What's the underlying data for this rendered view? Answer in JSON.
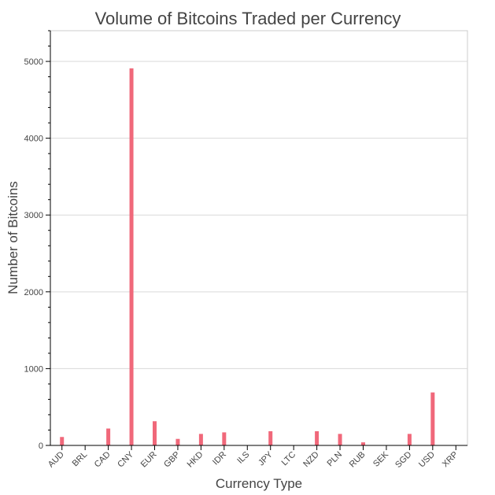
{
  "chart_data": {
    "type": "bar",
    "title": "Volume of Bitcoins Traded per Currency",
    "xlabel": "Currency Type",
    "ylabel": "Number of Bitcoins",
    "categories": [
      "AUD",
      "BRL",
      "CAD",
      "CNY",
      "EUR",
      "GBP",
      "HKD",
      "IDR",
      "ILS",
      "JPY",
      "LTC",
      "NZD",
      "PLN",
      "RUB",
      "SEK",
      "SGD",
      "USD",
      "XRP"
    ],
    "values": [
      110,
      0,
      220,
      4910,
      315,
      85,
      150,
      170,
      0,
      185,
      0,
      185,
      150,
      40,
      0,
      150,
      690,
      0
    ],
    "ylim": [
      0,
      5400
    ],
    "yticks": [
      0,
      1000,
      2000,
      3000,
      4000,
      5000
    ],
    "bar_color": "#f0687a",
    "grid": true
  }
}
